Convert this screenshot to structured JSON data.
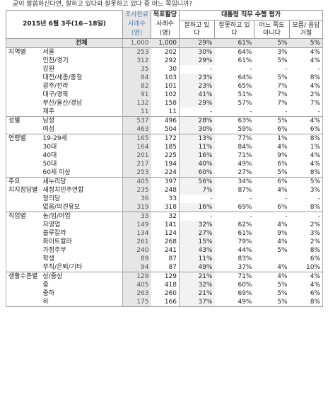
{
  "question": "굳이 말씀하신다면, 잘하고 있다와 잘못하고 있다 중 어느 쪽입니까?",
  "header": {
    "period": "2015년 6월 3주(16~18일)",
    "sample_done": "조사완료",
    "sample_done_sub": "사례수",
    "sample_done_unit": "(명)",
    "target": "목표할당",
    "target_sub": "사례수",
    "target_unit": "(명)",
    "eval_title": "대통령 직무 수행 평가",
    "col_good": "잘하고 있다",
    "col_bad": "잘못하고 있다",
    "col_neither": "어느 쪽도 아니다",
    "col_dk": "모름/ 응답거절"
  },
  "rows": [
    {
      "group": "",
      "label": "전체",
      "n": "1,000",
      "t": "1,000",
      "good": "29%",
      "bad": "61%",
      "neither": "5%",
      "dk": "5%",
      "total": true
    },
    {
      "group": "지역별",
      "label": "서울",
      "n": "253",
      "t": "202",
      "good": "30%",
      "bad": "64%",
      "neither": "3%",
      "dk": "4%",
      "sep": true
    },
    {
      "group": "",
      "label": "인천/경기",
      "n": "312",
      "t": "292",
      "good": "29%",
      "bad": "61%",
      "neither": "5%",
      "dk": "4%"
    },
    {
      "group": "",
      "label": "강원",
      "n": "35",
      "t": "30",
      "good": "-",
      "bad": "-",
      "neither": "-",
      "dk": "-"
    },
    {
      "group": "",
      "label": "대전/세종/충청",
      "n": "84",
      "t": "103",
      "good": "23%",
      "bad": "64%",
      "neither": "5%",
      "dk": "8%"
    },
    {
      "group": "",
      "label": "광주/전라",
      "n": "82",
      "t": "101",
      "good": "23%",
      "bad": "65%",
      "neither": "7%",
      "dk": "4%"
    },
    {
      "group": "",
      "label": "대구/경북",
      "n": "91",
      "t": "102",
      "good": "41%",
      "bad": "51%",
      "neither": "7%",
      "dk": "2%"
    },
    {
      "group": "",
      "label": "부산/울산/경남",
      "n": "132",
      "t": "158",
      "good": "29%",
      "bad": "57%",
      "neither": "7%",
      "dk": "7%"
    },
    {
      "group": "",
      "label": "제주",
      "n": "11",
      "t": "11",
      "good": "-",
      "bad": "-",
      "neither": "-",
      "dk": "-"
    },
    {
      "group": "성별",
      "label": "남성",
      "n": "537",
      "t": "496",
      "good": "28%",
      "bad": "63%",
      "neither": "5%",
      "dk": "4%",
      "sep": true
    },
    {
      "group": "",
      "label": "여성",
      "n": "463",
      "t": "504",
      "good": "30%",
      "bad": "59%",
      "neither": "6%",
      "dk": "6%"
    },
    {
      "group": "연령별",
      "label": "19-29세",
      "n": "165",
      "t": "172",
      "good": "13%",
      "bad": "77%",
      "neither": "1%",
      "dk": "8%",
      "sep": true
    },
    {
      "group": "",
      "label": "30대",
      "n": "164",
      "t": "185",
      "good": "11%",
      "bad": "84%",
      "neither": "4%",
      "dk": "1%"
    },
    {
      "group": "",
      "label": "40대",
      "n": "201",
      "t": "225",
      "good": "16%",
      "bad": "71%",
      "neither": "9%",
      "dk": "4%"
    },
    {
      "group": "",
      "label": "50대",
      "n": "217",
      "t": "194",
      "good": "40%",
      "bad": "49%",
      "neither": "6%",
      "dk": "4%"
    },
    {
      "group": "",
      "label": "60세 이상",
      "n": "253",
      "t": "224",
      "good": "60%",
      "bad": "27%",
      "neither": "5%",
      "dk": "8%"
    },
    {
      "group": "주요",
      "label": "새누리당",
      "n": "405",
      "t": "397",
      "good": "56%",
      "bad": "34%",
      "neither": "6%",
      "dk": "5%",
      "sep": true
    },
    {
      "group": "지지정당별",
      "label": "새정치민주연합",
      "n": "235",
      "t": "248",
      "good": "7%",
      "bad": "87%",
      "neither": "4%",
      "dk": "3%"
    },
    {
      "group": "",
      "label": "정의당",
      "n": "36",
      "t": "33",
      "good": "-",
      "bad": "-",
      "neither": "-",
      "dk": "-"
    },
    {
      "group": "",
      "label": "없음/의견유보",
      "n": "319",
      "t": "318",
      "good": "16%",
      "bad": "69%",
      "neither": "6%",
      "dk": "8%"
    },
    {
      "group": "직업별",
      "label": "농/임/어업",
      "n": "33",
      "t": "32",
      "good": "-",
      "bad": "-",
      "neither": "-",
      "dk": "-",
      "sep": true
    },
    {
      "group": "",
      "label": "자영업",
      "n": "149",
      "t": "141",
      "good": "32%",
      "bad": "62%",
      "neither": "4%",
      "dk": "2%"
    },
    {
      "group": "",
      "label": "블루칼라",
      "n": "134",
      "t": "124",
      "good": "27%",
      "bad": "61%",
      "neither": "9%",
      "dk": "3%"
    },
    {
      "group": "",
      "label": "화이트칼라",
      "n": "261",
      "t": "268",
      "good": "15%",
      "bad": "79%",
      "neither": "4%",
      "dk": "2%"
    },
    {
      "group": "",
      "label": "가정주부",
      "n": "240",
      "t": "241",
      "good": "43%",
      "bad": "44%",
      "neither": "5%",
      "dk": "8%"
    },
    {
      "group": "",
      "label": "학생",
      "n": "89",
      "t": "87",
      "good": "11%",
      "bad": "83%",
      "neither": "",
      "dk": "6%"
    },
    {
      "group": "",
      "label": "무직/은퇴/기타",
      "n": "94",
      "t": "87",
      "good": "49%",
      "bad": "37%",
      "neither": "4%",
      "dk": "10%"
    },
    {
      "group": "생활수준별",
      "label": "상/중상",
      "n": "129",
      "t": "129",
      "good": "21%",
      "bad": "71%",
      "neither": "4%",
      "dk": "4%",
      "sep": true
    },
    {
      "group": "",
      "label": "중",
      "n": "405",
      "t": "418",
      "good": "32%",
      "bad": "60%",
      "neither": "5%",
      "dk": "4%"
    },
    {
      "group": "",
      "label": "중하",
      "n": "263",
      "t": "260",
      "good": "21%",
      "bad": "69%",
      "neither": "5%",
      "dk": "6%"
    },
    {
      "group": "",
      "label": "하",
      "n": "175",
      "t": "166",
      "good": "37%",
      "bad": "49%",
      "neither": "5%",
      "dk": "8%"
    }
  ]
}
